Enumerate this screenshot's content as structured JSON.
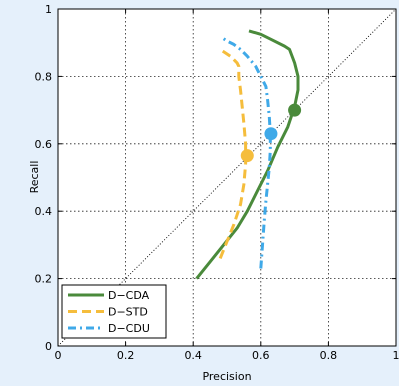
{
  "chart_data": {
    "type": "line",
    "title": "",
    "xlabel": "Precision",
    "ylabel": "Recall",
    "xlim": [
      0,
      1
    ],
    "ylim": [
      0,
      1
    ],
    "xticks": [
      "0",
      "0.2",
      "0.4",
      "0.6",
      "0.8",
      "1"
    ],
    "yticks": [
      "0",
      "0.2",
      "0.4",
      "0.6",
      "0.8",
      "1"
    ],
    "grid": true,
    "legend_position": "bottom-left",
    "reference_line": {
      "style": "dotted",
      "from": [
        0,
        0
      ],
      "to": [
        1,
        1
      ],
      "color": "#000000"
    },
    "series": [
      {
        "name": "D−CDA",
        "color": "#4a8a3b",
        "style": "solid",
        "x": [
          0.41,
          0.45,
          0.49,
          0.53,
          0.56,
          0.59,
          0.62,
          0.65,
          0.68,
          0.7,
          0.71,
          0.71,
          0.7,
          0.685,
          0.67,
          0.63,
          0.6,
          0.565
        ],
        "y": [
          0.2,
          0.25,
          0.3,
          0.35,
          0.4,
          0.46,
          0.52,
          0.59,
          0.65,
          0.71,
          0.76,
          0.8,
          0.84,
          0.88,
          0.89,
          0.91,
          0.925,
          0.935
        ],
        "marker": {
          "x": 0.7,
          "y": 0.7
        }
      },
      {
        "name": "D−STD",
        "color": "#f5bd3c",
        "style": "dashed",
        "x": [
          0.48,
          0.5,
          0.52,
          0.54,
          0.55,
          0.555,
          0.555,
          0.55,
          0.545,
          0.54,
          0.535,
          0.535,
          0.53,
          0.51,
          0.48
        ],
        "y": [
          0.26,
          0.31,
          0.36,
          0.42,
          0.48,
          0.54,
          0.6,
          0.66,
          0.71,
          0.76,
          0.8,
          0.83,
          0.84,
          0.86,
          0.88
        ],
        "marker": {
          "x": 0.56,
          "y": 0.565
        }
      },
      {
        "name": "D−CDU",
        "color": "#3fa9e8",
        "style": "dash-dot",
        "x": [
          0.6,
          0.605,
          0.61,
          0.615,
          0.62,
          0.625,
          0.628,
          0.628,
          0.625,
          0.62,
          0.615,
          0.6,
          0.585,
          0.56,
          0.54,
          0.52,
          0.5,
          0.485
        ],
        "y": [
          0.23,
          0.3,
          0.37,
          0.43,
          0.48,
          0.53,
          0.58,
          0.63,
          0.68,
          0.73,
          0.77,
          0.8,
          0.83,
          0.86,
          0.88,
          0.895,
          0.905,
          0.915
        ],
        "marker": {
          "x": 0.63,
          "y": 0.63
        }
      }
    ]
  }
}
